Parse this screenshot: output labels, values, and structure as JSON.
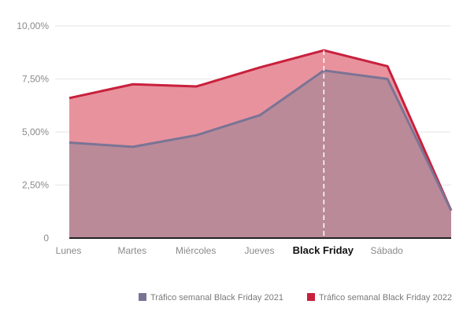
{
  "chart_data": {
    "type": "area",
    "categories": [
      "Lunes",
      "Martes",
      "Miércoles",
      "Jueves",
      "Black Friday",
      "Sábado",
      ""
    ],
    "highlight_category": "Black Friday",
    "y_ticks": [
      "0",
      "2,50%",
      "5,00%",
      "7,50%",
      "10,00%"
    ],
    "ylim": [
      0,
      10
    ],
    "grid": true,
    "legend_position": "bottom-right",
    "series": [
      {
        "name": "Tráfico semanal Black Friday 2022",
        "values": [
          6.6,
          7.25,
          7.15,
          8.05,
          8.85,
          8.1,
          1.3
        ],
        "line_color": "#c8203c",
        "fill_color": "#e8929e"
      },
      {
        "name": "Tráfico semanal Black Friday 2021",
        "values": [
          4.5,
          4.3,
          4.85,
          5.8,
          7.9,
          7.5,
          1.3
        ],
        "line_color": "#7a7494",
        "fill_color": "#ba8a99"
      }
    ]
  }
}
